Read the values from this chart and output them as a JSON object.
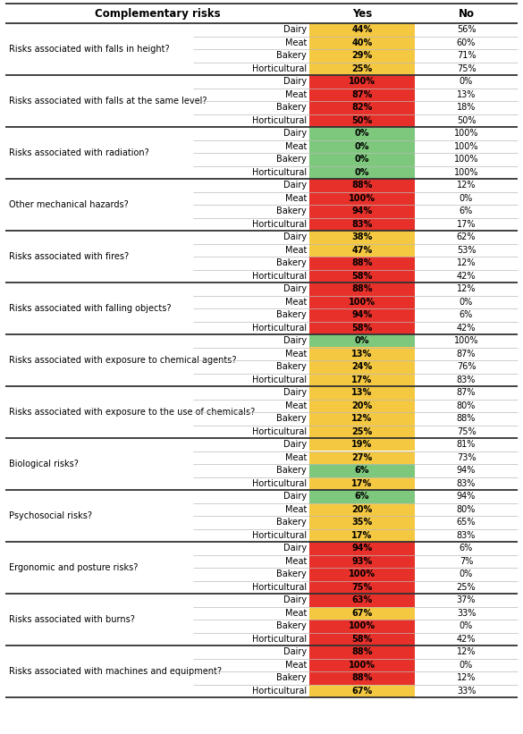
{
  "rows": [
    {
      "question": "Risks associated with falls in height?",
      "sub": "Dairy",
      "yes": "44%",
      "no": "56%",
      "yes_color": "#F5C842"
    },
    {
      "question": "",
      "sub": "Meat",
      "yes": "40%",
      "no": "60%",
      "yes_color": "#F5C842"
    },
    {
      "question": "",
      "sub": "Bakery",
      "yes": "29%",
      "no": "71%",
      "yes_color": "#F5C842"
    },
    {
      "question": "",
      "sub": "Horticultural",
      "yes": "25%",
      "no": "75%",
      "yes_color": "#F5C842"
    },
    {
      "question": "Risks associated with falls at the same level?",
      "sub": "Dairy",
      "yes": "100%",
      "no": "0%",
      "yes_color": "#E8302A"
    },
    {
      "question": "",
      "sub": "Meat",
      "yes": "87%",
      "no": "13%",
      "yes_color": "#E8302A"
    },
    {
      "question": "",
      "sub": "Bakery",
      "yes": "82%",
      "no": "18%",
      "yes_color": "#E8302A"
    },
    {
      "question": "",
      "sub": "Horticultural",
      "yes": "50%",
      "no": "50%",
      "yes_color": "#E8302A"
    },
    {
      "question": "Risks associated with radiation?",
      "sub": "Dairy",
      "yes": "0%",
      "no": "100%",
      "yes_color": "#7DC87D"
    },
    {
      "question": "",
      "sub": "Meat",
      "yes": "0%",
      "no": "100%",
      "yes_color": "#7DC87D"
    },
    {
      "question": "",
      "sub": "Bakery",
      "yes": "0%",
      "no": "100%",
      "yes_color": "#7DC87D"
    },
    {
      "question": "",
      "sub": "Horticultural",
      "yes": "0%",
      "no": "100%",
      "yes_color": "#7DC87D"
    },
    {
      "question": "Other mechanical hazards?",
      "sub": "Dairy",
      "yes": "88%",
      "no": "12%",
      "yes_color": "#E8302A"
    },
    {
      "question": "",
      "sub": "Meat",
      "yes": "100%",
      "no": "0%",
      "yes_color": "#E8302A"
    },
    {
      "question": "",
      "sub": "Bakery",
      "yes": "94%",
      "no": "6%",
      "yes_color": "#E8302A"
    },
    {
      "question": "",
      "sub": "Horticultural",
      "yes": "83%",
      "no": "17%",
      "yes_color": "#E8302A"
    },
    {
      "question": "Risks associated with fires?",
      "sub": "Dairy",
      "yes": "38%",
      "no": "62%",
      "yes_color": "#F5C842"
    },
    {
      "question": "",
      "sub": "Meat",
      "yes": "47%",
      "no": "53%",
      "yes_color": "#F5C842"
    },
    {
      "question": "",
      "sub": "Bakery",
      "yes": "88%",
      "no": "12%",
      "yes_color": "#E8302A"
    },
    {
      "question": "",
      "sub": "Horticultural",
      "yes": "58%",
      "no": "42%",
      "yes_color": "#E8302A"
    },
    {
      "question": "Risks associated with falling objects?",
      "sub": "Dairy",
      "yes": "88%",
      "no": "12%",
      "yes_color": "#E8302A"
    },
    {
      "question": "",
      "sub": "Meat",
      "yes": "100%",
      "no": "0%",
      "yes_color": "#E8302A"
    },
    {
      "question": "",
      "sub": "Bakery",
      "yes": "94%",
      "no": "6%",
      "yes_color": "#E8302A"
    },
    {
      "question": "",
      "sub": "Horticultural",
      "yes": "58%",
      "no": "42%",
      "yes_color": "#E8302A"
    },
    {
      "question": "Risks associated with exposure to chemical agents?",
      "sub": "Dairy",
      "yes": "0%",
      "no": "100%",
      "yes_color": "#7DC87D"
    },
    {
      "question": "",
      "sub": "Meat",
      "yes": "13%",
      "no": "87%",
      "yes_color": "#F5C842"
    },
    {
      "question": "",
      "sub": "Bakery",
      "yes": "24%",
      "no": "76%",
      "yes_color": "#F5C842"
    },
    {
      "question": "",
      "sub": "Horticultural",
      "yes": "17%",
      "no": "83%",
      "yes_color": "#F5C842"
    },
    {
      "question": "Risks associated with exposure to the use of chemicals?",
      "sub": "Dairy",
      "yes": "13%",
      "no": "87%",
      "yes_color": "#F5C842"
    },
    {
      "question": "",
      "sub": "Meat",
      "yes": "20%",
      "no": "80%",
      "yes_color": "#F5C842"
    },
    {
      "question": "",
      "sub": "Bakery",
      "yes": "12%",
      "no": "88%",
      "yes_color": "#F5C842"
    },
    {
      "question": "",
      "sub": "Horticultural",
      "yes": "25%",
      "no": "75%",
      "yes_color": "#F5C842"
    },
    {
      "question": "Biological risks?",
      "sub": "Dairy",
      "yes": "19%",
      "no": "81%",
      "yes_color": "#F5C842"
    },
    {
      "question": "",
      "sub": "Meat",
      "yes": "27%",
      "no": "73%",
      "yes_color": "#F5C842"
    },
    {
      "question": "",
      "sub": "Bakery",
      "yes": "6%",
      "no": "94%",
      "yes_color": "#7DC87D"
    },
    {
      "question": "",
      "sub": "Horticultural",
      "yes": "17%",
      "no": "83%",
      "yes_color": "#F5C842"
    },
    {
      "question": "Psychosocial risks?",
      "sub": "Dairy",
      "yes": "6%",
      "no": "94%",
      "yes_color": "#7DC87D"
    },
    {
      "question": "",
      "sub": "Meat",
      "yes": "20%",
      "no": "80%",
      "yes_color": "#F5C842"
    },
    {
      "question": "",
      "sub": "Bakery",
      "yes": "35%",
      "no": "65%",
      "yes_color": "#F5C842"
    },
    {
      "question": "",
      "sub": "Horticultural",
      "yes": "17%",
      "no": "83%",
      "yes_color": "#F5C842"
    },
    {
      "question": "Ergonomic and posture risks?",
      "sub": "Dairy",
      "yes": "94%",
      "no": "6%",
      "yes_color": "#E8302A"
    },
    {
      "question": "",
      "sub": "Meat",
      "yes": "93%",
      "no": "7%",
      "yes_color": "#E8302A"
    },
    {
      "question": "",
      "sub": "Bakery",
      "yes": "100%",
      "no": "0%",
      "yes_color": "#E8302A"
    },
    {
      "question": "",
      "sub": "Horticultural",
      "yes": "75%",
      "no": "25%",
      "yes_color": "#E8302A"
    },
    {
      "question": "Risks associated with burns?",
      "sub": "Dairy",
      "yes": "63%",
      "no": "37%",
      "yes_color": "#E8302A"
    },
    {
      "question": "",
      "sub": "Meat",
      "yes": "67%",
      "no": "33%",
      "yes_color": "#F5C842"
    },
    {
      "question": "",
      "sub": "Bakery",
      "yes": "100%",
      "no": "0%",
      "yes_color": "#E8302A"
    },
    {
      "question": "",
      "sub": "Horticultural",
      "yes": "58%",
      "no": "42%",
      "yes_color": "#E8302A"
    },
    {
      "question": "Risks associated with machines and equipment?",
      "sub": "Dairy",
      "yes": "88%",
      "no": "12%",
      "yes_color": "#E8302A"
    },
    {
      "question": "",
      "sub": "Meat",
      "yes": "100%",
      "no": "0%",
      "yes_color": "#E8302A"
    },
    {
      "question": "",
      "sub": "Bakery",
      "yes": "88%",
      "no": "12%",
      "yes_color": "#E8302A"
    },
    {
      "question": "",
      "sub": "Horticultural",
      "yes": "67%",
      "no": "33%",
      "yes_color": "#F5C842"
    }
  ],
  "group_starts": [
    0,
    4,
    8,
    12,
    16,
    20,
    24,
    28,
    32,
    36,
    40,
    44,
    48
  ],
  "header_label": "Complementary risks",
  "yes_label": "Yes",
  "no_label": "No",
  "thick_line_color": "#333333",
  "thin_line_color": "#bbbbbb",
  "font_size": 7.0,
  "header_font_size": 8.5,
  "bg_color": "#ffffff"
}
